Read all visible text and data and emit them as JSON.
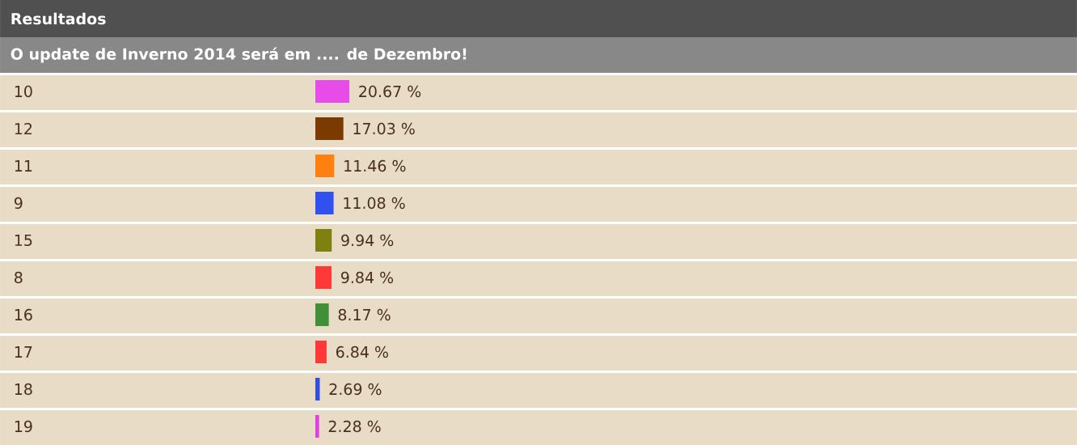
{
  "chart_data": {
    "type": "bar",
    "orientation": "horizontal",
    "title": "Resultados",
    "subtitle": "O update de Inverno 2014 será em .... de Dezembro!",
    "categories": [
      "10",
      "12",
      "11",
      "9",
      "15",
      "8",
      "16",
      "17",
      "18",
      "19"
    ],
    "values": [
      20.67,
      17.03,
      11.46,
      11.08,
      9.94,
      9.84,
      8.17,
      6.84,
      2.69,
      2.28
    ],
    "value_labels": [
      "20.67 %",
      "17.03 %",
      "11.46 %",
      "11.08 %",
      "9.94 %",
      "9.84 %",
      "8.17 %",
      "6.84 %",
      "2.69 %",
      "2.28 %"
    ],
    "colors": [
      "#e84ce8",
      "#7a3a00",
      "#ff8010",
      "#3050f0",
      "#808010",
      "#ff3838",
      "#409038",
      "#ff3838",
      "#3050e0",
      "#e040e0"
    ]
  }
}
